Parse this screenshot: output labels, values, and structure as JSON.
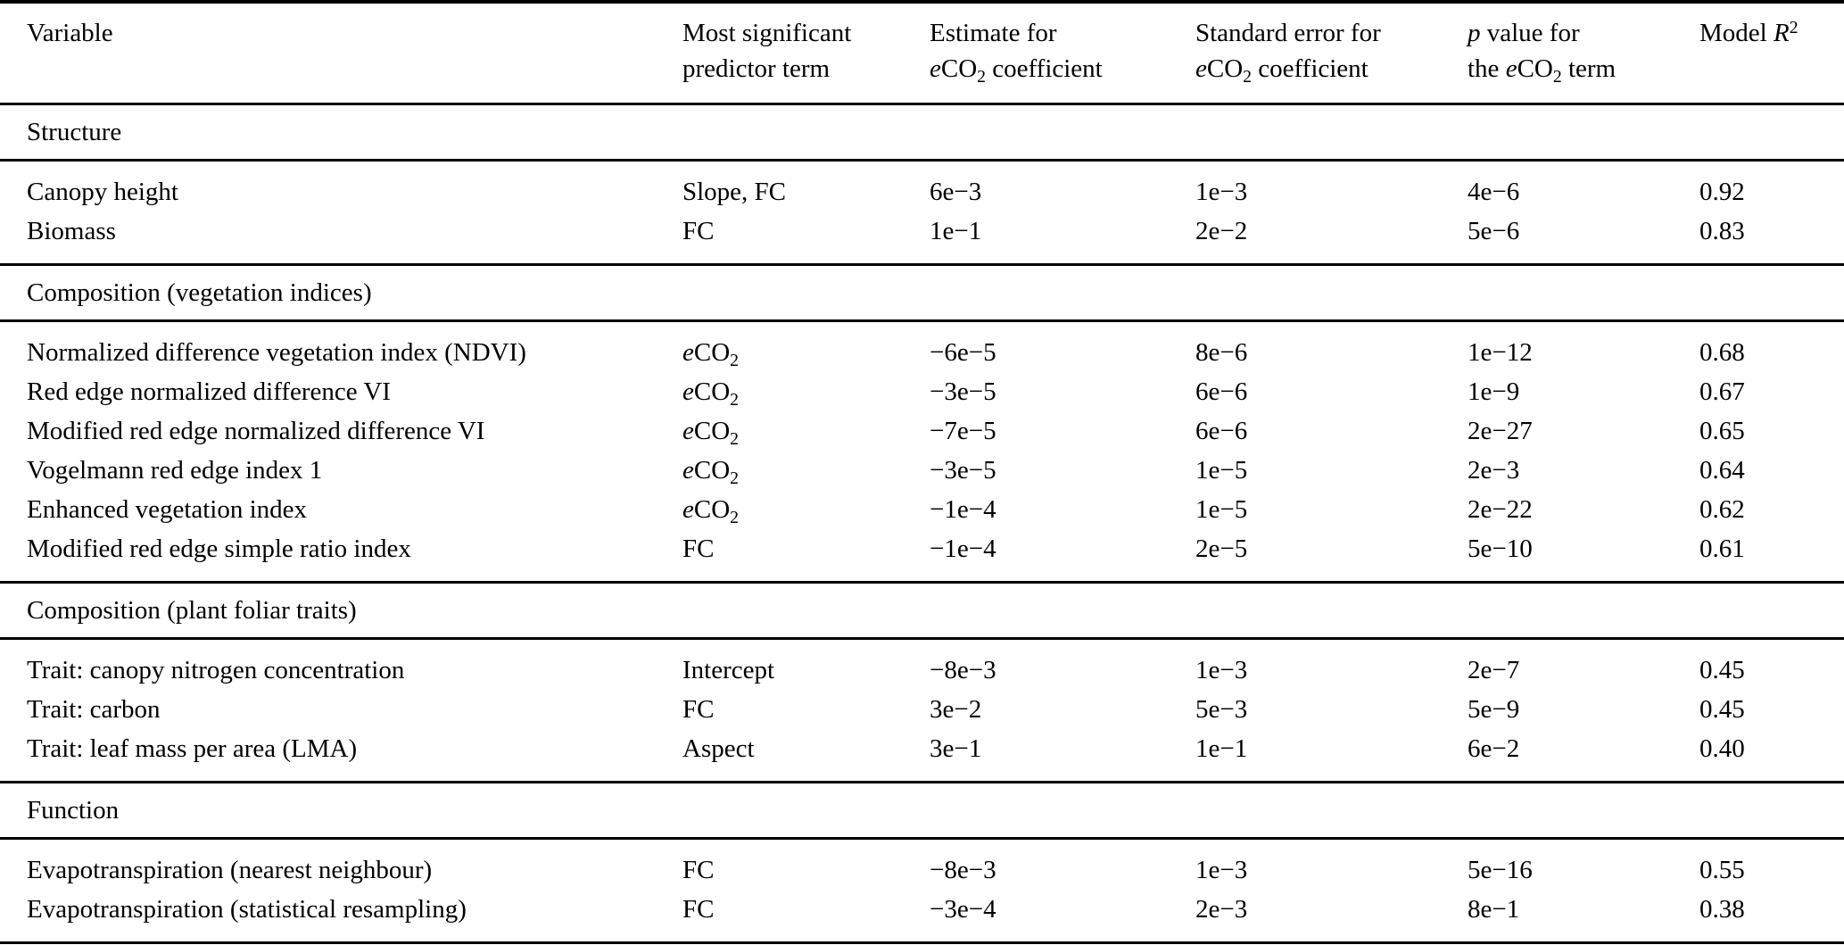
{
  "table": {
    "header": {
      "variable": {
        "line1": "Variable",
        "line2": ""
      },
      "predictor": {
        "line1": "Most significant",
        "line2": "predictor term"
      },
      "estimate": {
        "line1": "Estimate for",
        "line2": "eCO2 coefficient"
      },
      "std_error": {
        "line1": "Standard error for",
        "line2": "eCO2 coefficient"
      },
      "p_value": {
        "line1": "p value for",
        "line2": "the eCO2 term"
      },
      "r2": {
        "line1": "Model R2",
        "line2": ""
      }
    },
    "sections": [
      {
        "title": "Structure",
        "rows": [
          {
            "variable": "Canopy height",
            "predictor": "Slope, FC",
            "estimate": "6e−3",
            "std_error": "1e−3",
            "p_value": "4e−6",
            "r2": "0.92"
          },
          {
            "variable": "Biomass",
            "predictor": "FC",
            "estimate": "1e−1",
            "std_error": "2e−2",
            "p_value": "5e−6",
            "r2": "0.83"
          }
        ]
      },
      {
        "title": "Composition (vegetation indices)",
        "rows": [
          {
            "variable": "Normalized difference vegetation index (NDVI)",
            "predictor": "eCO2",
            "estimate": "−6e−5",
            "std_error": "8e−6",
            "p_value": "1e−12",
            "r2": "0.68"
          },
          {
            "variable": "Red edge normalized difference VI",
            "predictor": "eCO2",
            "estimate": "−3e−5",
            "std_error": "6e−6",
            "p_value": "1e−9",
            "r2": "0.67"
          },
          {
            "variable": "Modified red edge normalized difference VI",
            "predictor": "eCO2",
            "estimate": "−7e−5",
            "std_error": "6e−6",
            "p_value": "2e−27",
            "r2": "0.65"
          },
          {
            "variable": "Vogelmann red edge index 1",
            "predictor": "eCO2",
            "estimate": "−3e−5",
            "std_error": "1e−5",
            "p_value": "2e−3",
            "r2": "0.64"
          },
          {
            "variable": "Enhanced vegetation index",
            "predictor": "eCO2",
            "estimate": "−1e−4",
            "std_error": "1e−5",
            "p_value": "2e−22",
            "r2": "0.62"
          },
          {
            "variable": "Modified red edge simple ratio index",
            "predictor": "FC",
            "estimate": "−1e−4",
            "std_error": "2e−5",
            "p_value": "5e−10",
            "r2": "0.61"
          }
        ]
      },
      {
        "title": "Composition (plant foliar traits)",
        "rows": [
          {
            "variable": "Trait: canopy nitrogen concentration",
            "predictor": "Intercept",
            "estimate": "−8e−3",
            "std_error": "1e−3",
            "p_value": "2e−7",
            "r2": "0.45"
          },
          {
            "variable": "Trait: carbon",
            "predictor": "FC",
            "estimate": "3e−2",
            "std_error": "5e−3",
            "p_value": "5e−9",
            "r2": "0.45"
          },
          {
            "variable": "Trait: leaf mass per area (LMA)",
            "predictor": "Aspect",
            "estimate": "3e−1",
            "std_error": "1e−1",
            "p_value": "6e−2",
            "r2": "0.40"
          }
        ]
      },
      {
        "title": "Function",
        "rows": [
          {
            "variable": "Evapotranspiration (nearest neighbour)",
            "predictor": "FC",
            "estimate": "−8e−3",
            "std_error": "1e−3",
            "p_value": "5e−16",
            "r2": "0.55"
          },
          {
            "variable": "Evapotranspiration (statistical resampling)",
            "predictor": "FC",
            "estimate": "−3e−4",
            "std_error": "2e−3",
            "p_value": "8e−1",
            "r2": "0.38"
          }
        ]
      }
    ]
  }
}
